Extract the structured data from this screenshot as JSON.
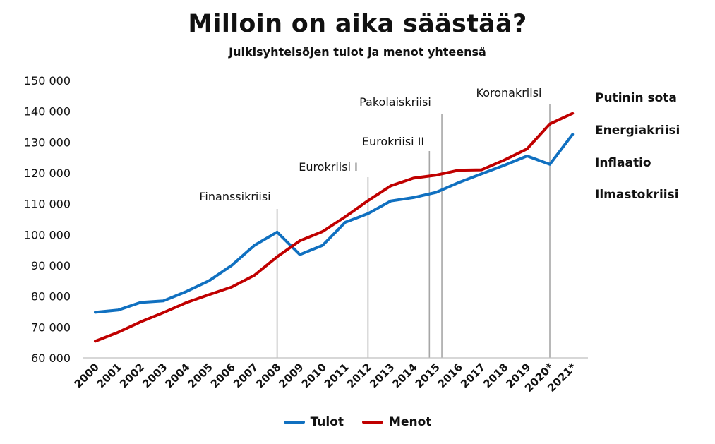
{
  "header": {
    "title": "Milloin on aika säästää?",
    "subtitle": "Julkisyhteisöjen tulot ja menot yhteensä"
  },
  "side_notes": [
    "Putinin sota",
    "Energiakriisi",
    "Inflaatio",
    "Ilmastokriisi"
  ],
  "colors": {
    "tulot": "#1070c0",
    "menot": "#c00000",
    "event_line": "#a6a6a6",
    "axis": "#bfbfbf"
  },
  "chart_data": {
    "type": "line",
    "title": "Milloin on aika säästää?",
    "subtitle": "Julkisyhteisöjen tulot ja menot yhteensä",
    "xlabel": "",
    "ylabel": "",
    "categories": [
      "2000",
      "2001",
      "2002",
      "2003",
      "2004",
      "2005",
      "2006",
      "2007",
      "2008",
      "2009",
      "2010",
      "2011",
      "2012",
      "2013",
      "2014",
      "2015",
      "2016",
      "2017",
      "2018",
      "2019",
      "2020*",
      "2021*"
    ],
    "ylim": [
      60000,
      150000
    ],
    "yticks": [
      60000,
      70000,
      80000,
      90000,
      100000,
      110000,
      120000,
      130000,
      140000,
      150000
    ],
    "ytick_labels": [
      "60 000",
      "70 000",
      "80 000",
      "90 000",
      "100 000",
      "110 000",
      "120 000",
      "130 000",
      "140 000",
      "150 000"
    ],
    "grid": false,
    "legend_position": "bottom",
    "series": [
      {
        "name": "Tulot",
        "color": "#1070c0",
        "values": [
          74800,
          75500,
          78000,
          78500,
          81500,
          85000,
          90000,
          96500,
          100800,
          93500,
          96500,
          104000,
          106800,
          110900,
          112000,
          113700,
          116900,
          119700,
          122500,
          125500,
          122800,
          132500
        ]
      },
      {
        "name": "Menot",
        "color": "#c00000",
        "values": [
          65400,
          68300,
          71700,
          74700,
          77900,
          80500,
          83000,
          86800,
          92800,
          98000,
          101000,
          105800,
          111000,
          115800,
          118300,
          119300,
          120900,
          121000,
          124200,
          127800,
          135900,
          139300
        ]
      }
    ],
    "events": [
      {
        "label": "Finanssikriisi",
        "x": 8.0
      },
      {
        "label": "Eurokriisi I",
        "x": 12.0
      },
      {
        "label": "Eurokriisi II",
        "x": 14.7
      },
      {
        "label": "Pakolaiskriisi",
        "x": 15.25
      },
      {
        "label": "Koronakriisi",
        "x": 20.0
      }
    ]
  }
}
